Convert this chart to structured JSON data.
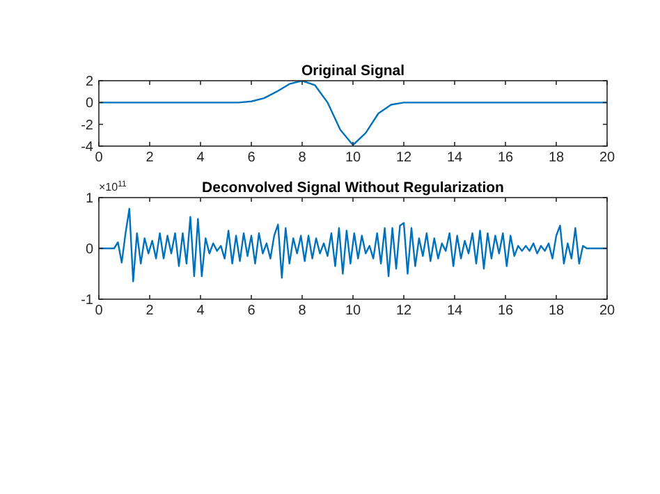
{
  "chart_data": [
    {
      "type": "line",
      "title": "Original Signal",
      "x": [
        0,
        5,
        5.5,
        6,
        6.5,
        7,
        7.5,
        8,
        8.5,
        9,
        9.5,
        10,
        10.5,
        11,
        11.5,
        12,
        20
      ],
      "series": [
        {
          "color": "#0072bd",
          "values": [
            0,
            0,
            0,
            0.1,
            0.4,
            1.0,
            1.7,
            2.0,
            1.6,
            0,
            -2.5,
            -3.9,
            -2.8,
            -1,
            -0.2,
            0,
            0
          ]
        }
      ],
      "xlim": [
        0,
        20
      ],
      "xticks": [
        0,
        2,
        4,
        6,
        8,
        10,
        12,
        14,
        16,
        18,
        20
      ],
      "ylim": [
        -4,
        2
      ],
      "yticks": [
        -4,
        -2,
        0,
        2
      ]
    },
    {
      "type": "line",
      "title": "Deconvolved Signal Without Regularization",
      "annotations": [
        "×10$^{11}$"
      ],
      "x": [
        0,
        0.6,
        0.75,
        0.9,
        1.05,
        1.2,
        1.35,
        1.5,
        1.65,
        1.8,
        1.95,
        2.1,
        2.25,
        2.4,
        2.55,
        2.7,
        2.85,
        3.0,
        3.15,
        3.3,
        3.45,
        3.6,
        3.75,
        3.9,
        4.05,
        4.2,
        4.35,
        4.5,
        4.65,
        4.8,
        4.95,
        5.1,
        5.25,
        5.4,
        5.55,
        5.7,
        5.85,
        6.0,
        6.15,
        6.3,
        6.45,
        6.6,
        6.75,
        6.9,
        7.05,
        7.2,
        7.35,
        7.5,
        7.65,
        7.8,
        7.95,
        8.1,
        8.25,
        8.4,
        8.55,
        8.7,
        8.85,
        9.0,
        9.15,
        9.3,
        9.45,
        9.6,
        9.75,
        9.9,
        10.05,
        10.2,
        10.35,
        10.5,
        10.65,
        10.8,
        10.95,
        11.1,
        11.25,
        11.4,
        11.55,
        11.7,
        11.85,
        12.0,
        12.15,
        12.3,
        12.45,
        12.6,
        12.75,
        12.9,
        13.05,
        13.2,
        13.35,
        13.5,
        13.65,
        13.8,
        13.95,
        14.1,
        14.25,
        14.4,
        14.55,
        14.7,
        14.85,
        15.0,
        15.15,
        15.3,
        15.45,
        15.6,
        15.75,
        15.9,
        16.05,
        16.2,
        16.35,
        16.5,
        16.65,
        16.8,
        16.95,
        17.1,
        17.25,
        17.4,
        17.55,
        17.7,
        17.85,
        18.0,
        18.15,
        18.3,
        18.45,
        18.6,
        18.75,
        18.9,
        19.05,
        19.2,
        19.35,
        20
      ],
      "series": [
        {
          "color": "#0072bd",
          "values": [
            0,
            0,
            0.12,
            -0.28,
            0.3,
            0.78,
            -0.65,
            0.3,
            -0.3,
            0.2,
            -0.1,
            0.15,
            -0.2,
            0.3,
            -0.2,
            0.25,
            -0.1,
            0.3,
            -0.35,
            0.3,
            -0.3,
            0.62,
            -0.55,
            0.58,
            -0.55,
            0.2,
            -0.1,
            0.1,
            -0.05,
            0.05,
            -0.2,
            0.35,
            -0.3,
            0.25,
            -0.25,
            0.3,
            -0.15,
            0.25,
            -0.3,
            0.3,
            -0.1,
            0.1,
            -0.2,
            0.25,
            0.47,
            -0.58,
            0.4,
            -0.3,
            0.2,
            -0.1,
            0.25,
            -0.25,
            0.25,
            -0.2,
            0.2,
            -0.1,
            0.1,
            -0.15,
            0.3,
            -0.35,
            0.4,
            -0.5,
            0.35,
            -0.3,
            0.3,
            -0.2,
            0.25,
            -0.1,
            0.05,
            -0.2,
            0.3,
            -0.3,
            0.4,
            -0.55,
            0.4,
            -0.4,
            0.45,
            0.5,
            -0.5,
            0.4,
            -0.35,
            0.2,
            -0.15,
            0.3,
            -0.25,
            0.2,
            -0.2,
            0.1,
            -0.05,
            0.3,
            -0.35,
            0.25,
            -0.2,
            0.15,
            -0.1,
            0.3,
            -0.3,
            0.35,
            -0.4,
            0.3,
            -0.2,
            0.25,
            -0.1,
            0.3,
            -0.35,
            0.25,
            -0.15,
            0.05,
            -0.05,
            0.05,
            -0.05,
            0.1,
            -0.1,
            0.05,
            -0.05,
            0.1,
            -0.2,
            0.25,
            0.45,
            -0.3,
            0.1,
            -0.2,
            0.4,
            -0.3,
            0.05,
            0,
            0,
            0
          ]
        }
      ],
      "xlim": [
        0,
        20
      ],
      "xticks": [
        0,
        2,
        4,
        6,
        8,
        10,
        12,
        14,
        16,
        18,
        20
      ],
      "ylim": [
        -1,
        1
      ],
      "yticks": [
        -1,
        0,
        1
      ]
    }
  ]
}
